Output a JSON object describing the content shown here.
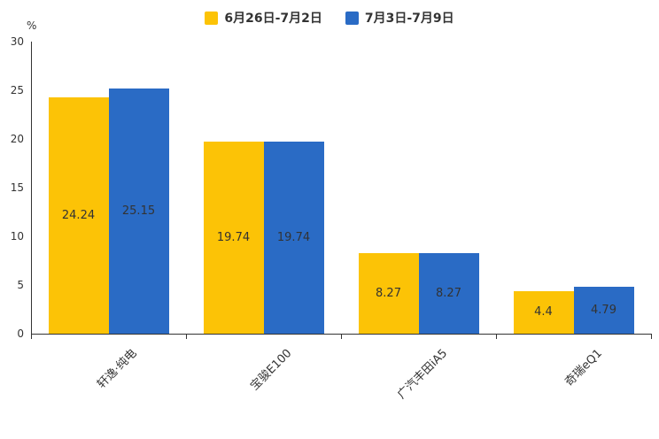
{
  "chart_data": {
    "type": "bar",
    "title": "",
    "categories": [
      "轩逸·纯电",
      "宝骏E100",
      "广汽丰田iA5",
      "奇瑞eQ1"
    ],
    "series": [
      {
        "name": "6月26日-7月2日",
        "color": "#FCC306",
        "values": [
          24.24,
          19.74,
          8.27,
          4.4
        ]
      },
      {
        "name": "7月3日-7月9日",
        "color": "#2A6BC5",
        "values": [
          25.15,
          19.74,
          8.27,
          4.79
        ]
      }
    ],
    "ylabel": "%",
    "yticks": [
      0,
      5,
      10,
      15,
      20,
      25,
      30
    ],
    "ylim": [
      0,
      30
    ],
    "grid": false,
    "legend_position": "top",
    "bar_label_position": "inside-center",
    "category_label_rotation": 45,
    "axis_color": "#333333",
    "text_color": "#333333",
    "bar_label_color": "#333333",
    "background_color": "#ffffff"
  }
}
